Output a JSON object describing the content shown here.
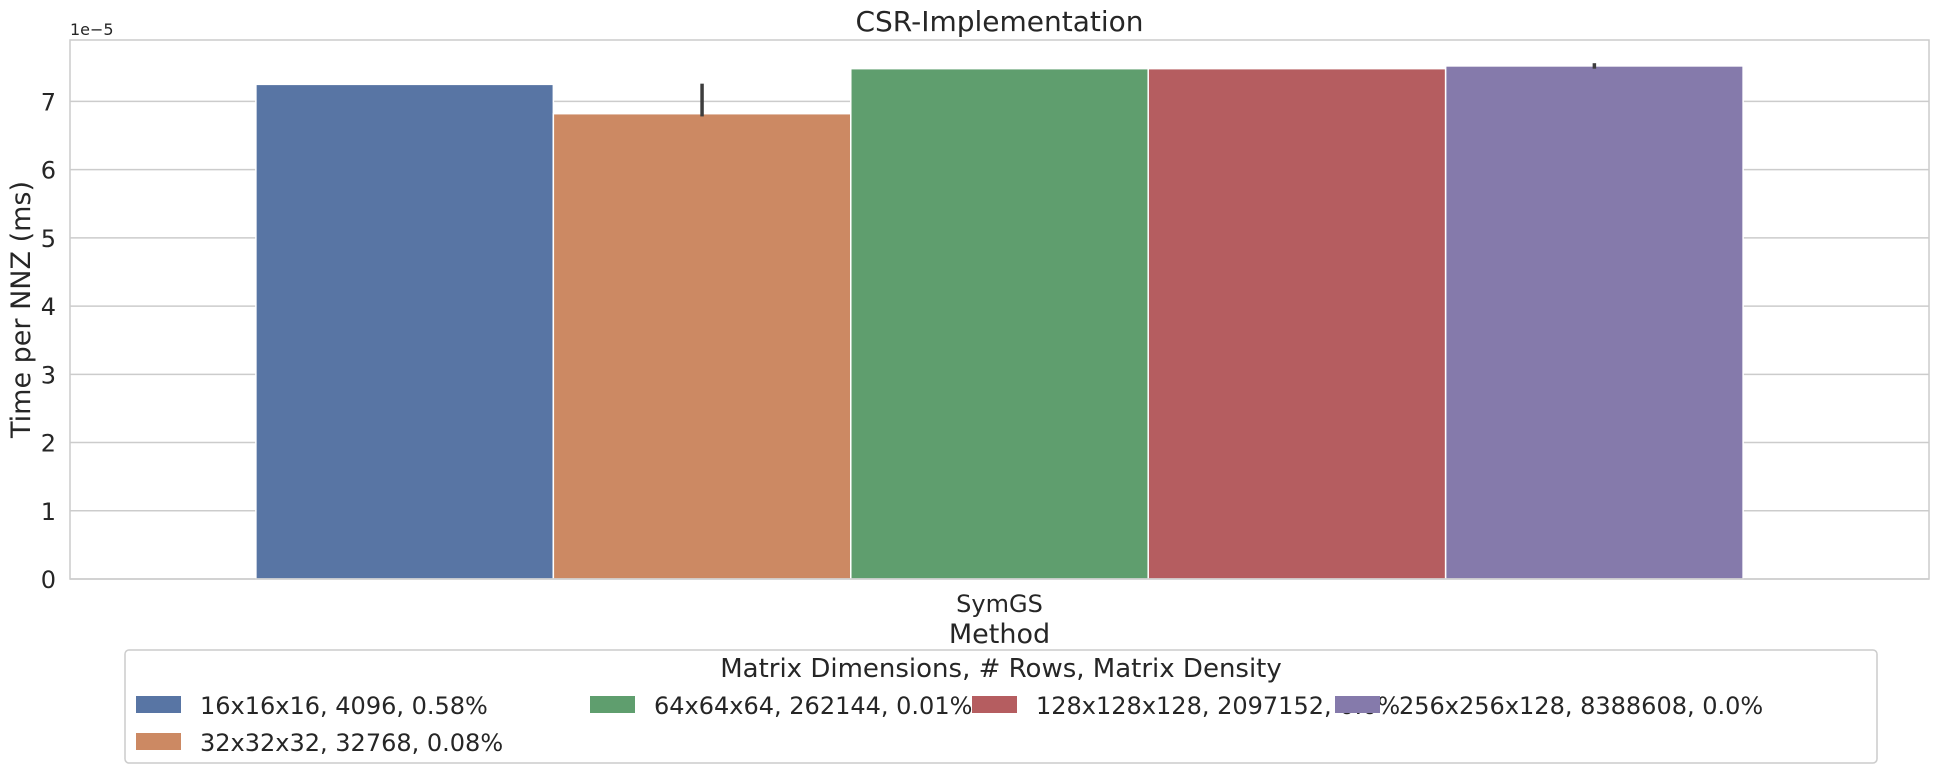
{
  "chart_data": {
    "type": "bar",
    "title": "CSR-Implementation",
    "xlabel": "Method",
    "ylabel": "Time per NNZ (ms)",
    "y_offset_label": "1e−5",
    "y_scale": 1e-05,
    "ylim": [
      0,
      7.9
    ],
    "yticks": [
      0,
      1,
      2,
      3,
      4,
      5,
      6,
      7
    ],
    "grid": true,
    "categories": [
      "SymGS"
    ],
    "legend": {
      "title": "Matrix Dimensions, # Rows, Matrix Density",
      "placement": "bottom-center"
    },
    "series": [
      {
        "name": "16x16x16, 4096, 0.58%",
        "values": [
          7.25
        ],
        "error": [
          null
        ],
        "color": "#5875a4"
      },
      {
        "name": "32x32x32, 32768, 0.08%",
        "values": [
          6.82
        ],
        "error": [
          [
            6.78,
            7.26
          ]
        ],
        "color": "#cc8963"
      },
      {
        "name": "64x64x64, 262144, 0.01%",
        "values": [
          7.48
        ],
        "error": [
          null
        ],
        "color": "#5f9e6e"
      },
      {
        "name": "128x128x128, 2097152, 0.0%",
        "values": [
          7.48
        ],
        "error": [
          null
        ],
        "color": "#b55d60"
      },
      {
        "name": "256x256x128, 8388608, 0.0%",
        "values": [
          7.52
        ],
        "error": [
          [
            7.48,
            7.56
          ]
        ],
        "color": "#857aab"
      }
    ]
  }
}
